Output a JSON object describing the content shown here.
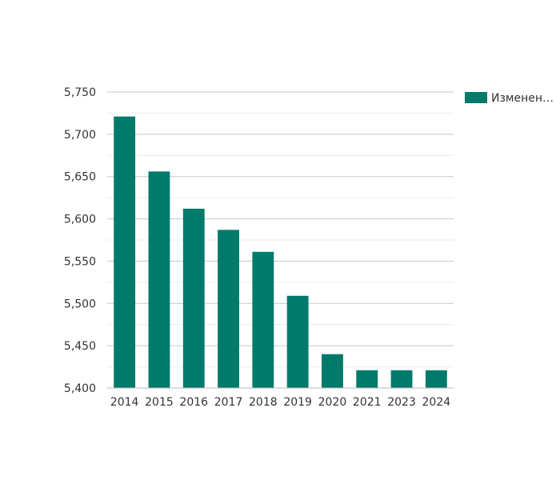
{
  "chart_data": {
    "type": "bar",
    "categories": [
      "2014",
      "2015",
      "2016",
      "2017",
      "2018",
      "2019",
      "2020",
      "2021",
      "2023",
      "2024"
    ],
    "series": [
      {
        "name": "Изменен…",
        "values": [
          5721,
          5656,
          5612,
          5587,
          5561,
          5509,
          5440,
          5421,
          5421,
          5421
        ]
      }
    ],
    "ylim": [
      5400,
      5750
    ],
    "yticks": [
      5400,
      5450,
      5500,
      5550,
      5600,
      5650,
      5700,
      5750
    ],
    "ytick_labels": [
      "5,400",
      "5,450",
      "5,500",
      "5,550",
      "5,600",
      "5,650",
      "5,700",
      "5,750"
    ],
    "grid": true,
    "legend_position": "top-right",
    "colors": {
      "bar": "#007a6a",
      "major_grid": "#c8c8c8",
      "minor_grid": "#ececec",
      "axis": "#bbbbbb"
    }
  }
}
